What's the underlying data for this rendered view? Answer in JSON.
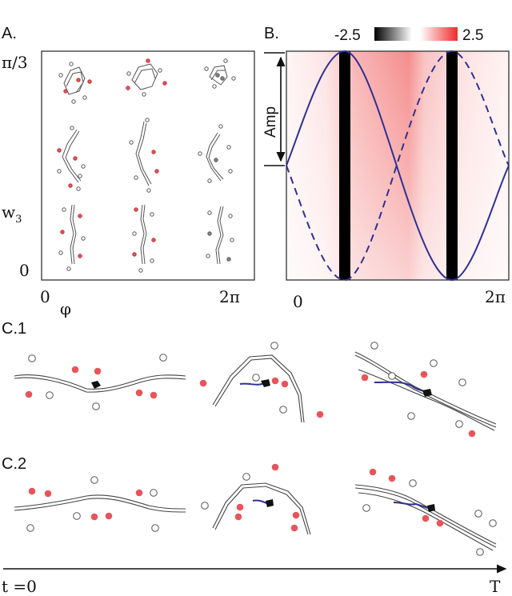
{
  "panels": {
    "a_label": "A.",
    "b_label": "B.",
    "c1_label": "C.1",
    "c2_label": "C.2"
  },
  "panel_a": {
    "y_top": "π/3",
    "y_mid": "w",
    "y_mid_sub": "3",
    "y_bottom": "0",
    "x_left": "0",
    "x_symbol": "φ",
    "x_right": "2π"
  },
  "panel_b": {
    "colorbar_min": "-2.5",
    "colorbar_max": "2.5",
    "amp_label": "Amp",
    "x_left": "0",
    "x_right": "2π"
  },
  "timeline": {
    "start_label": "t =0",
    "end_label": "T"
  },
  "colors": {
    "red_dot": "#e8545a",
    "white_dot": "#ffffff",
    "curve": "#2e3192",
    "heat": "#f24b4b",
    "axis": "#333333"
  }
}
